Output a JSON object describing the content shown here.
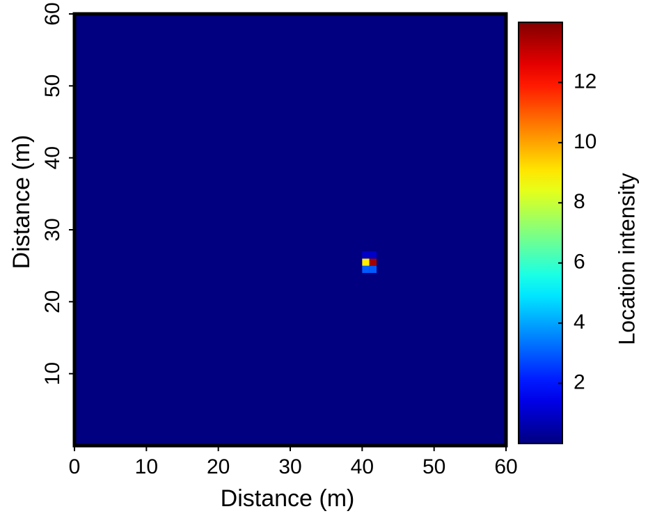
{
  "chart_data": {
    "type": "heatmap",
    "xlabel": "Distance (m)",
    "ylabel": "Distance (m)",
    "xlim": [
      0,
      60
    ],
    "xticks": [
      0,
      10,
      20,
      30,
      40,
      50,
      60
    ],
    "ylim": [
      0,
      60
    ],
    "yticks": [
      10,
      20,
      30,
      40,
      50,
      60
    ],
    "xbins": [
      40,
      41,
      42
    ],
    "ybins": [
      24,
      25,
      26,
      27
    ],
    "values": [
      [
        3,
        3
      ],
      [
        9,
        13.5
      ],
      [
        1,
        1
      ]
    ],
    "colormap": "jet",
    "colorbar": {
      "label": "Location intensity",
      "lim": [
        0,
        14
      ],
      "ticks": [
        2,
        4,
        6,
        8,
        10,
        12
      ]
    }
  }
}
